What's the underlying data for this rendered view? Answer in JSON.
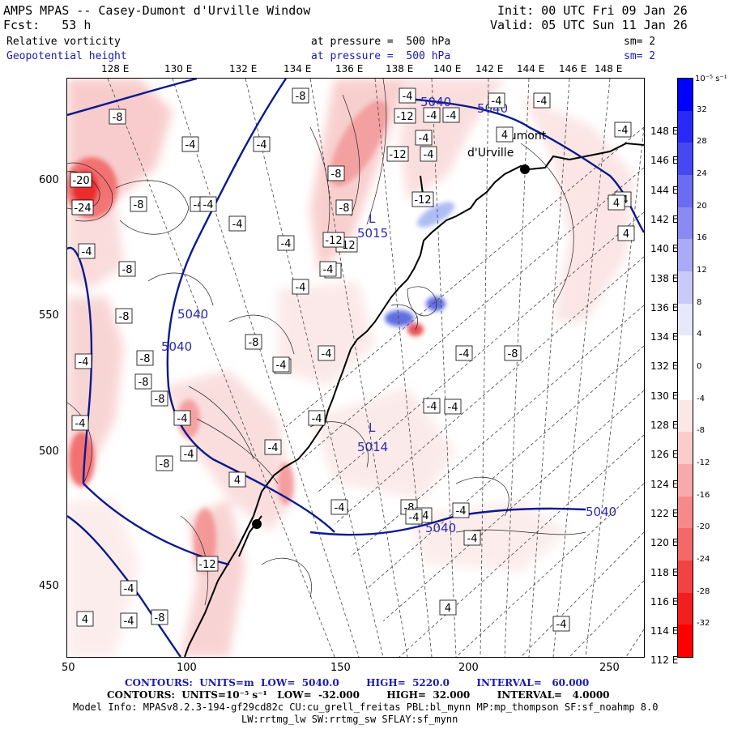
{
  "header": {
    "left1": "AMPS MPAS -- Casey-Dumont d'Urville Window",
    "left2": "Fcst:   53 h",
    "right1": "Init: 00 UTC Fri 09 Jan 26",
    "right2": "Valid: 05 UTC Sun 11 Jan 26",
    "field1": "Relative vorticity",
    "field2": "Geopotential height",
    "press1": "at pressure =  500 hPa",
    "press2": "at pressure =  500 hPa",
    "sm1": "sm= 2",
    "sm2": "sm= 2"
  },
  "lon_labels_top": [
    "128 E",
    "130 E",
    "132 E",
    "134 E",
    "136 E",
    "138 E",
    "140 E",
    "142 E",
    "144 E",
    "146 E",
    "148 E"
  ],
  "lon_labels_right": [
    "148 E",
    "146 E",
    "144 E",
    "142 E",
    "140 E",
    "138 E",
    "136 E",
    "134 E",
    "132 E",
    "130 E",
    "128 E",
    "126 E",
    "124 E",
    "122 E",
    "120 E",
    "118 E",
    "116 E",
    "114 E",
    "112 E"
  ],
  "x_ticks": [
    "50",
    "100",
    "150",
    "200",
    "250"
  ],
  "y_ticks": [
    "600",
    "550",
    "500",
    "450"
  ],
  "colorbar": {
    "unit": "10⁻⁵ s⁻¹",
    "labels": [
      "32",
      "28",
      "24",
      "20",
      "16",
      "12",
      "8",
      "4",
      "0",
      "-4",
      "-8",
      "-12",
      "-16",
      "-20",
      "-24",
      "-28",
      "-32"
    ]
  },
  "station_labels": {
    "dumont1": "Dumont",
    "dumont2": "d'Urville"
  },
  "height_labels": [
    "5040",
    "5040",
    "5040",
    "5040",
    "5040",
    "5040"
  ],
  "center_labels": [
    "5015",
    "5014"
  ],
  "low_marks": [
    "L",
    "L"
  ],
  "vort_boxes": [
    "-8",
    "-8",
    "-4",
    "-4",
    "-4",
    "-12",
    "-12",
    "-4",
    "-4",
    "-12",
    "-12",
    "-4",
    "-8",
    "-8",
    "-4",
    "-20",
    "-24",
    "-8",
    "-4",
    "-4",
    "-8",
    "-4",
    "-8",
    "-12",
    "-4",
    "4",
    "-8",
    "-4",
    "-4",
    "-4",
    "-4",
    "-8",
    "-8",
    "-8",
    "-4",
    "-4",
    "-4",
    "-4",
    "-4",
    "-4",
    "-8",
    "-4",
    "-4",
    "-4",
    "-4",
    "-4",
    "-4",
    "4",
    "4",
    "-4",
    "4",
    "-8",
    "-8",
    "-4",
    "-4",
    "4",
    "-4",
    "-4",
    "-12",
    "-4",
    "-8",
    "4",
    "-4",
    "-4",
    "4",
    "-4",
    "-4",
    "-4"
  ],
  "footer": {
    "line1": "CONTOURS:  UNITS=m  LOW=  5040.0        HIGH=  5220.0        INTERVAL=   60.000",
    "line2": "CONTOURS:  UNITS=10⁻⁵ s⁻¹   LOW=  -32.000        HIGH=  32.000        INTERVAL=   4.0000",
    "line3": "Model Info: MPASv8.2.3-194-gf29cd82c CU:cu_grell_freitas PBL:bl_mynn MP:mp_thompson SF:sf_noahmp 8.0",
    "line4": "LW:rrtmg_lw SW:rrtmg_sw SFLAY:sf_mynn"
  },
  "colors": {
    "height_contour": "#0b1a8c",
    "coast": "#000000",
    "neg_strong": "#ff0000",
    "pos_strong": "#0000ff"
  }
}
